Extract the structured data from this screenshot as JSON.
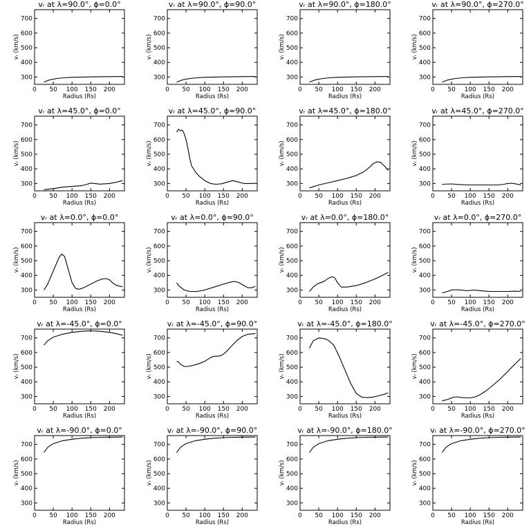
{
  "chart_data": {
    "type": "line",
    "xlabel": "Radius (Rs)",
    "ylabel": "vᵣ (km/s)",
    "xlim": [
      0,
      240
    ],
    "ylim": [
      250,
      760
    ],
    "x_ticks": [
      0,
      50,
      100,
      150,
      200
    ],
    "y_ticks": [
      300,
      400,
      500,
      600,
      700
    ],
    "grid": false,
    "panels": [
      {
        "title": "vᵣ at λ=90.0°, ϕ=0.0°",
        "points": [
          [
            25,
            265
          ],
          [
            40,
            280
          ],
          [
            60,
            290
          ],
          [
            80,
            295
          ],
          [
            100,
            298
          ],
          [
            150,
            301
          ],
          [
            200,
            303
          ],
          [
            235,
            304
          ]
        ]
      },
      {
        "title": "vᵣ at λ=90.0°, ϕ=90.0°",
        "points": [
          [
            25,
            265
          ],
          [
            40,
            280
          ],
          [
            60,
            290
          ],
          [
            80,
            295
          ],
          [
            100,
            298
          ],
          [
            150,
            301
          ],
          [
            200,
            303
          ],
          [
            235,
            304
          ]
        ]
      },
      {
        "title": "vᵣ at λ=90.0°, ϕ=180.0°",
        "points": [
          [
            25,
            265
          ],
          [
            40,
            280
          ],
          [
            60,
            290
          ],
          [
            80,
            295
          ],
          [
            100,
            298
          ],
          [
            150,
            301
          ],
          [
            200,
            303
          ],
          [
            235,
            304
          ]
        ]
      },
      {
        "title": "vᵣ at λ=90.0°, ϕ=270.0°",
        "points": [
          [
            25,
            265
          ],
          [
            40,
            280
          ],
          [
            60,
            290
          ],
          [
            80,
            295
          ],
          [
            100,
            298
          ],
          [
            150,
            301
          ],
          [
            200,
            303
          ],
          [
            235,
            304
          ]
        ]
      },
      {
        "title": "vᵣ at λ=45.0°, ϕ=0.0°",
        "points": [
          [
            25,
            258
          ],
          [
            50,
            265
          ],
          [
            75,
            275
          ],
          [
            100,
            280
          ],
          [
            125,
            285
          ],
          [
            140,
            295
          ],
          [
            150,
            303
          ],
          [
            160,
            300
          ],
          [
            175,
            296
          ],
          [
            200,
            300
          ],
          [
            220,
            310
          ],
          [
            235,
            320
          ]
        ]
      },
      {
        "title": "vᵣ at λ=45.0°, ϕ=90.0°",
        "points": [
          [
            25,
            650
          ],
          [
            30,
            670
          ],
          [
            35,
            660
          ],
          [
            40,
            665
          ],
          [
            45,
            640
          ],
          [
            50,
            600
          ],
          [
            55,
            540
          ],
          [
            60,
            470
          ],
          [
            65,
            420
          ],
          [
            75,
            380
          ],
          [
            85,
            350
          ],
          [
            100,
            320
          ],
          [
            115,
            300
          ],
          [
            130,
            295
          ],
          [
            145,
            298
          ],
          [
            160,
            310
          ],
          [
            175,
            320
          ],
          [
            190,
            310
          ],
          [
            205,
            300
          ],
          [
            220,
            300
          ],
          [
            235,
            302
          ]
        ]
      },
      {
        "title": "vᵣ at λ=45.0°, ϕ=180.0°",
        "points": [
          [
            25,
            270
          ],
          [
            50,
            290
          ],
          [
            75,
            305
          ],
          [
            100,
            320
          ],
          [
            125,
            335
          ],
          [
            150,
            355
          ],
          [
            170,
            380
          ],
          [
            185,
            410
          ],
          [
            195,
            435
          ],
          [
            205,
            448
          ],
          [
            215,
            445
          ],
          [
            225,
            420
          ],
          [
            235,
            390
          ]
        ]
      },
      {
        "title": "vᵣ at λ=45.0°, ϕ=270.0°",
        "points": [
          [
            25,
            295
          ],
          [
            50,
            297
          ],
          [
            75,
            292
          ],
          [
            100,
            290
          ],
          [
            125,
            290
          ],
          [
            150,
            290
          ],
          [
            175,
            290
          ],
          [
            190,
            295
          ],
          [
            200,
            300
          ],
          [
            210,
            302
          ],
          [
            220,
            298
          ],
          [
            235,
            290
          ]
        ]
      },
      {
        "title": "vᵣ at λ=0.0°, ϕ=0.0°",
        "points": [
          [
            25,
            300
          ],
          [
            35,
            340
          ],
          [
            45,
            400
          ],
          [
            55,
            460
          ],
          [
            65,
            520
          ],
          [
            72,
            545
          ],
          [
            80,
            530
          ],
          [
            90,
            440
          ],
          [
            100,
            350
          ],
          [
            110,
            310
          ],
          [
            120,
            305
          ],
          [
            135,
            320
          ],
          [
            150,
            340
          ],
          [
            165,
            360
          ],
          [
            180,
            375
          ],
          [
            190,
            378
          ],
          [
            200,
            370
          ],
          [
            210,
            345
          ],
          [
            220,
            330
          ],
          [
            235,
            322
          ]
        ]
      },
      {
        "title": "vᵣ at λ=0.0°, ϕ=90.0°",
        "points": [
          [
            25,
            350
          ],
          [
            30,
            330
          ],
          [
            35,
            320
          ],
          [
            45,
            300
          ],
          [
            60,
            290
          ],
          [
            80,
            290
          ],
          [
            100,
            300
          ],
          [
            125,
            320
          ],
          [
            150,
            340
          ],
          [
            170,
            355
          ],
          [
            180,
            358
          ],
          [
            190,
            352
          ],
          [
            205,
            330
          ],
          [
            215,
            315
          ],
          [
            225,
            315
          ],
          [
            235,
            325
          ]
        ]
      },
      {
        "title": "vᵣ at λ=0.0°, ϕ=180.0°",
        "points": [
          [
            25,
            290
          ],
          [
            35,
            320
          ],
          [
            45,
            340
          ],
          [
            55,
            350
          ],
          [
            65,
            360
          ],
          [
            75,
            380
          ],
          [
            85,
            390
          ],
          [
            92,
            385
          ],
          [
            100,
            350
          ],
          [
            110,
            320
          ],
          [
            125,
            320
          ],
          [
            150,
            330
          ],
          [
            175,
            350
          ],
          [
            200,
            375
          ],
          [
            220,
            400
          ],
          [
            235,
            420
          ]
        ]
      },
      {
        "title": "vᵣ at λ=0.0°, ϕ=270.0°",
        "points": [
          [
            25,
            280
          ],
          [
            40,
            290
          ],
          [
            50,
            300
          ],
          [
            60,
            302
          ],
          [
            75,
            300
          ],
          [
            90,
            295
          ],
          [
            100,
            297
          ],
          [
            110,
            300
          ],
          [
            125,
            296
          ],
          [
            140,
            292
          ],
          [
            150,
            290
          ],
          [
            175,
            290
          ],
          [
            200,
            290
          ],
          [
            220,
            292
          ],
          [
            235,
            290
          ]
        ]
      },
      {
        "title": "vᵣ at λ=-45.0°, ϕ=0.0°",
        "points": [
          [
            25,
            650
          ],
          [
            35,
            680
          ],
          [
            50,
            705
          ],
          [
            75,
            725
          ],
          [
            100,
            738
          ],
          [
            125,
            745
          ],
          [
            150,
            748
          ],
          [
            175,
            745
          ],
          [
            200,
            738
          ],
          [
            220,
            728
          ],
          [
            235,
            718
          ]
        ]
      },
      {
        "title": "vᵣ at λ=-45.0°, ϕ=90.0°",
        "points": [
          [
            25,
            540
          ],
          [
            30,
            535
          ],
          [
            35,
            520
          ],
          [
            45,
            505
          ],
          [
            55,
            505
          ],
          [
            65,
            510
          ],
          [
            80,
            520
          ],
          [
            100,
            540
          ],
          [
            115,
            565
          ],
          [
            125,
            575
          ],
          [
            135,
            575
          ],
          [
            145,
            580
          ],
          [
            155,
            600
          ],
          [
            170,
            640
          ],
          [
            185,
            680
          ],
          [
            200,
            710
          ],
          [
            215,
            725
          ],
          [
            235,
            730
          ]
        ]
      },
      {
        "title": "vᵣ at λ=-45.0°, ϕ=180.0°",
        "points": [
          [
            25,
            630
          ],
          [
            35,
            680
          ],
          [
            50,
            700
          ],
          [
            65,
            695
          ],
          [
            75,
            685
          ],
          [
            90,
            650
          ],
          [
            105,
            570
          ],
          [
            120,
            480
          ],
          [
            135,
            390
          ],
          [
            150,
            320
          ],
          [
            165,
            295
          ],
          [
            180,
            292
          ],
          [
            195,
            296
          ],
          [
            210,
            305
          ],
          [
            225,
            315
          ],
          [
            235,
            325
          ]
        ]
      },
      {
        "title": "vᵣ at λ=-45.0°, ϕ=270.0°",
        "points": [
          [
            25,
            270
          ],
          [
            40,
            280
          ],
          [
            55,
            295
          ],
          [
            65,
            297
          ],
          [
            80,
            292
          ],
          [
            100,
            290
          ],
          [
            110,
            295
          ],
          [
            125,
            310
          ],
          [
            140,
            335
          ],
          [
            160,
            375
          ],
          [
            180,
            420
          ],
          [
            200,
            470
          ],
          [
            215,
            510
          ],
          [
            235,
            560
          ]
        ]
      },
      {
        "title": "vᵣ at λ=-90.0°, ϕ=0.0°",
        "points": [
          [
            25,
            645
          ],
          [
            35,
            680
          ],
          [
            50,
            705
          ],
          [
            75,
            725
          ],
          [
            100,
            735
          ],
          [
            125,
            742
          ],
          [
            150,
            746
          ],
          [
            175,
            748
          ],
          [
            200,
            749
          ],
          [
            235,
            750
          ]
        ]
      },
      {
        "title": "vᵣ at λ=-90.0°, ϕ=90.0°",
        "points": [
          [
            25,
            645
          ],
          [
            35,
            680
          ],
          [
            50,
            705
          ],
          [
            75,
            725
          ],
          [
            100,
            735
          ],
          [
            125,
            742
          ],
          [
            150,
            746
          ],
          [
            175,
            748
          ],
          [
            200,
            749
          ],
          [
            235,
            750
          ]
        ]
      },
      {
        "title": "vᵣ at λ=-90.0°, ϕ=180.0°",
        "points": [
          [
            25,
            645
          ],
          [
            35,
            680
          ],
          [
            50,
            705
          ],
          [
            75,
            725
          ],
          [
            100,
            735
          ],
          [
            125,
            742
          ],
          [
            150,
            746
          ],
          [
            175,
            748
          ],
          [
            200,
            749
          ],
          [
            235,
            750
          ]
        ]
      },
      {
        "title": "vᵣ at λ=-90.0°, ϕ=270.0°",
        "points": [
          [
            25,
            645
          ],
          [
            35,
            680
          ],
          [
            50,
            705
          ],
          [
            75,
            725
          ],
          [
            100,
            735
          ],
          [
            125,
            742
          ],
          [
            150,
            746
          ],
          [
            175,
            748
          ],
          [
            200,
            749
          ],
          [
            235,
            750
          ]
        ]
      }
    ]
  }
}
